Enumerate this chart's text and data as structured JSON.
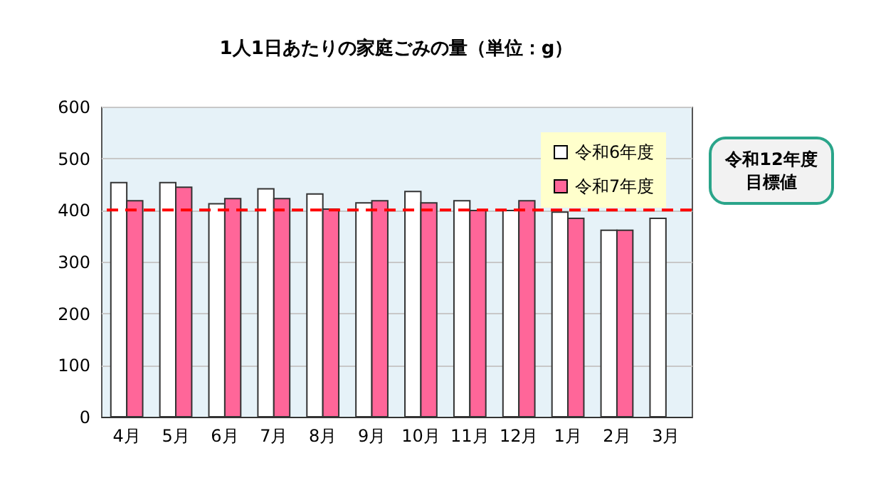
{
  "chart_data": {
    "type": "bar",
    "title": "1人1日あたりの家庭ごみの量（単位：g）",
    "categories": [
      "4月",
      "5月",
      "6月",
      "7月",
      "8月",
      "9月",
      "10月",
      "11月",
      "12月",
      "1月",
      "2月",
      "3月"
    ],
    "series": [
      {
        "name": "令和6年度",
        "color": "#ffffff",
        "values": [
          453,
          453,
          412,
          441,
          431,
          414,
          436,
          418,
          399,
          396,
          361,
          384
        ]
      },
      {
        "name": "令和7年度",
        "color": "#ff6699",
        "values": [
          418,
          444,
          422,
          422,
          402,
          418,
          414,
          399,
          418,
          384,
          361,
          null
        ]
      }
    ],
    "ylim": [
      0,
      600
    ],
    "yticks": [
      0,
      100,
      200,
      300,
      400,
      500,
      600
    ],
    "grid": "y",
    "legend": "top right",
    "ref_lines": [
      {
        "axis": "y",
        "value": 400,
        "label": "令和12年度目標値",
        "color": "#ff0000",
        "line_style": "dashed"
      }
    ]
  }
}
